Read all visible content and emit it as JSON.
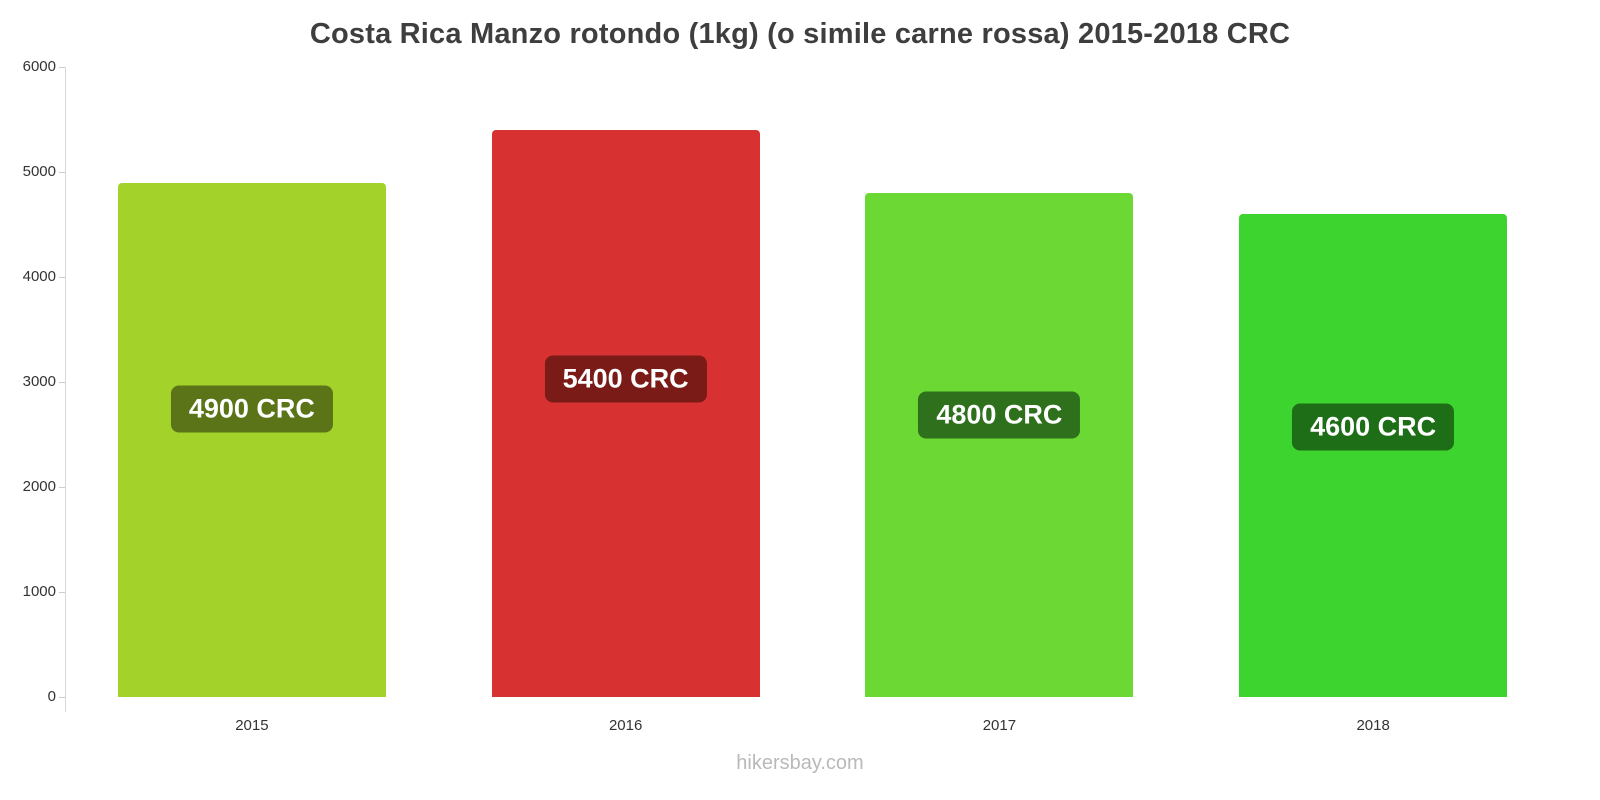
{
  "title": "Costa Rica Manzo rotondo (1kg) (o simile carne rossa) 2015-2018 CRC",
  "footer": "hikersbay.com",
  "chart_data": {
    "type": "bar",
    "title": "Costa Rica Manzo rotondo (1kg) (o simile carne rossa) 2015-2018 CRC",
    "categories": [
      "2015",
      "2016",
      "2017",
      "2018"
    ],
    "values": [
      4900,
      5400,
      4800,
      4600
    ],
    "value_labels": [
      "4900 CRC",
      "5400 CRC",
      "4800 CRC",
      "4600 CRC"
    ],
    "bar_colors": [
      "#a3d32b",
      "#d73231",
      "#6cd833",
      "#3ed42f"
    ],
    "label_bg_colors": [
      "#5a7417",
      "#7a1b18",
      "#2e701b",
      "#1d6e17"
    ],
    "xlabel": "",
    "ylabel": "",
    "ylim": [
      0,
      6000
    ],
    "yticks": [
      0,
      1000,
      2000,
      3000,
      4000,
      5000,
      6000
    ],
    "grid": false,
    "legend": false,
    "source_watermark": "hikersbay.com"
  }
}
